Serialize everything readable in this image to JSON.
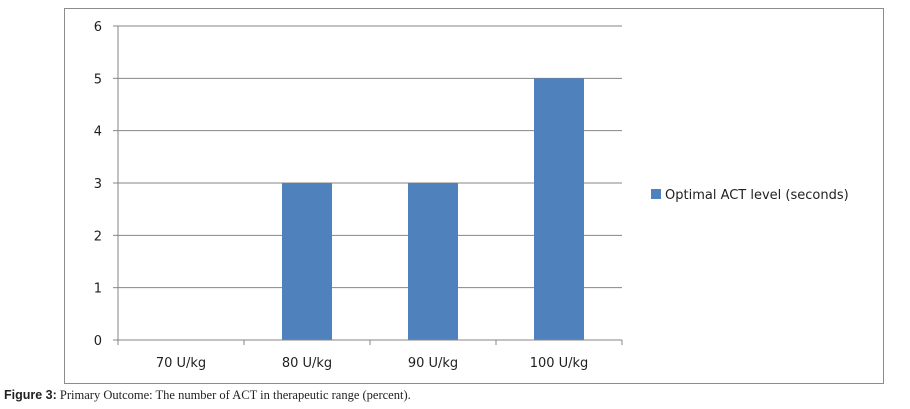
{
  "chart_data": {
    "type": "bar",
    "categories": [
      "70 U/kg",
      "80 U/kg",
      "90 U/kg",
      "100 U/kg"
    ],
    "series": [
      {
        "name": "Optimal ACT level (seconds)",
        "values": [
          0,
          3,
          3,
          5
        ],
        "color": "#4f81bd"
      }
    ],
    "ylim": [
      0,
      6
    ],
    "yticks": [
      0,
      1,
      2,
      3,
      4,
      5,
      6
    ],
    "grid": true,
    "legend": "right"
  },
  "caption": {
    "label": "Figure 3:",
    "text": "Primary Outcome: The number of ACT in therapeutic range (percent)."
  }
}
